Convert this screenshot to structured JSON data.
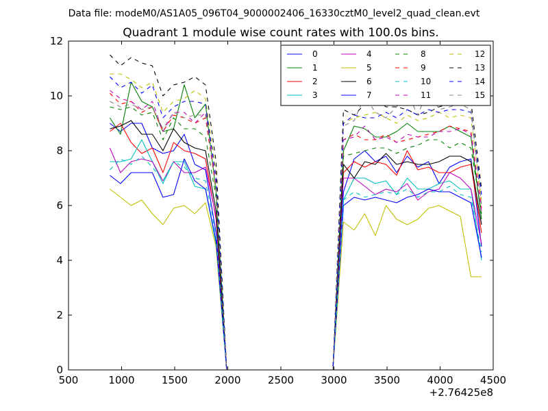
{
  "suptitle": "Data file: modeM0/AS1A05_096T04_9000002406_16330cztM0_level2_quad_clean.evt",
  "chart_data": {
    "type": "line",
    "title": "Quadrant 1 module wise count rates with 100.0s bins.",
    "xlabel": "",
    "ylabel": "",
    "x_offset_label": "+2.76425e8",
    "xlim": [
      500,
      4500
    ],
    "ylim": [
      0,
      12
    ],
    "xticks": [
      500,
      1000,
      1500,
      2000,
      2500,
      3000,
      3500,
      4000,
      4500
    ],
    "yticks": [
      0,
      2,
      4,
      6,
      8,
      10,
      12
    ],
    "grid": false,
    "legend_position": "top-right",
    "legend_columns": 4,
    "x": [
      890,
      990,
      1090,
      1190,
      1290,
      1390,
      1490,
      1590,
      1690,
      1790,
      1890,
      1990,
      2090,
      2190,
      2290,
      2390,
      2490,
      2590,
      2690,
      2790,
      2890,
      2990,
      3090,
      3190,
      3290,
      3390,
      3490,
      3590,
      3690,
      3790,
      3890,
      3990,
      4090,
      4190,
      4290,
      4390
    ],
    "series": [
      {
        "name": "0",
        "color": "#0000ff",
        "dash": false,
        "values": [
          9.0,
          8.7,
          9.0,
          9.0,
          8.1,
          7.9,
          8.0,
          8.6,
          7.5,
          7.3,
          5.0,
          0,
          0,
          0,
          0,
          0,
          0,
          0,
          0,
          0,
          0,
          0,
          6.5,
          7.7,
          8.0,
          7.6,
          7.8,
          7.2,
          7.8,
          7.4,
          7.6,
          6.8,
          7.4,
          7.6,
          7.7,
          4.5
        ]
      },
      {
        "name": "1",
        "color": "#008000",
        "dash": false,
        "values": [
          9.2,
          8.6,
          10.5,
          9.8,
          9.6,
          8.7,
          8.8,
          10.4,
          9.2,
          9.7,
          6.5,
          0,
          0,
          0,
          0,
          0,
          0,
          0,
          0,
          0,
          0,
          0,
          8.0,
          8.9,
          8.8,
          8.5,
          8.5,
          8.7,
          9.0,
          8.7,
          8.7,
          8.7,
          8.9,
          8.7,
          8.5,
          5.5
        ]
      },
      {
        "name": "2",
        "color": "#ff0000",
        "dash": false,
        "values": [
          8.7,
          9.0,
          8.3,
          7.9,
          8.1,
          7.2,
          8.3,
          8.0,
          7.9,
          7.7,
          5.5,
          0,
          0,
          0,
          0,
          0,
          0,
          0,
          0,
          0,
          0,
          0,
          7.2,
          7.6,
          7.4,
          7.6,
          7.5,
          7.1,
          8.0,
          7.3,
          7.4,
          7.2,
          7.2,
          7.4,
          7.5,
          5.0
        ]
      },
      {
        "name": "3",
        "color": "#00bfbf",
        "dash": false,
        "values": [
          7.6,
          7.6,
          7.7,
          8.4,
          7.6,
          6.8,
          7.6,
          7.6,
          6.7,
          6.6,
          4.6,
          0,
          0,
          0,
          0,
          0,
          0,
          0,
          0,
          0,
          0,
          0,
          6.2,
          7.0,
          7.0,
          6.8,
          6.9,
          6.4,
          7.0,
          6.6,
          6.6,
          6.8,
          6.9,
          6.6,
          6.6,
          4.0
        ]
      },
      {
        "name": "4",
        "color": "#bf00bf",
        "dash": false,
        "values": [
          8.1,
          7.2,
          7.6,
          7.7,
          7.6,
          6.9,
          7.6,
          7.2,
          7.2,
          7.4,
          5.6,
          0,
          0,
          0,
          0,
          0,
          0,
          0,
          0,
          0,
          0,
          0,
          7.0,
          7.0,
          6.7,
          6.4,
          6.6,
          6.5,
          6.8,
          6.2,
          6.5,
          6.6,
          7.2,
          7.0,
          6.6,
          4.6
        ]
      },
      {
        "name": "5",
        "color": "#bfbf00",
        "dash": false,
        "values": [
          6.6,
          6.3,
          6.0,
          6.2,
          5.7,
          5.3,
          5.9,
          6.0,
          5.7,
          6.1,
          4.5,
          0,
          0,
          0,
          0,
          0,
          0,
          0,
          0,
          0,
          0,
          0,
          5.4,
          5.1,
          5.7,
          4.9,
          6.0,
          5.5,
          5.3,
          5.5,
          5.9,
          6.0,
          5.8,
          5.6,
          3.4,
          3.4
        ]
      },
      {
        "name": "6",
        "color": "#000000",
        "dash": false,
        "values": [
          8.8,
          8.9,
          9.1,
          8.6,
          8.6,
          8.0,
          8.8,
          8.3,
          8.1,
          8.0,
          5.8,
          0,
          0,
          0,
          0,
          0,
          0,
          0,
          0,
          0,
          0,
          0,
          7.5,
          7.0,
          7.6,
          7.5,
          7.9,
          7.5,
          7.6,
          7.5,
          7.5,
          7.6,
          7.8,
          7.8,
          7.6,
          5.3
        ]
      },
      {
        "name": "7",
        "color": "#0000ff",
        "dash": false,
        "values": [
          7.1,
          6.8,
          7.2,
          7.2,
          7.2,
          6.3,
          6.4,
          7.7,
          6.9,
          6.6,
          4.7,
          0,
          0,
          0,
          0,
          0,
          0,
          0,
          0,
          0,
          0,
          0,
          6.0,
          6.3,
          6.2,
          6.3,
          6.2,
          6.1,
          6.3,
          6.4,
          6.6,
          6.5,
          6.5,
          6.3,
          6.1,
          4.1
        ]
      },
      {
        "name": "8",
        "color": "#008000",
        "dash": true,
        "values": [
          9.6,
          9.5,
          9.6,
          9.3,
          9.4,
          8.4,
          9.2,
          8.8,
          8.8,
          8.5,
          6.3,
          0,
          0,
          0,
          0,
          0,
          0,
          0,
          0,
          0,
          0,
          0,
          7.8,
          7.9,
          8.0,
          8.1,
          8.1,
          7.9,
          8.1,
          8.2,
          8.4,
          8.4,
          8.1,
          8.3,
          8.1,
          5.7
        ]
      },
      {
        "name": "9",
        "color": "#ff0000",
        "dash": true,
        "values": [
          10.1,
          9.7,
          9.8,
          9.4,
          9.6,
          8.7,
          9.3,
          9.2,
          9.0,
          9.2,
          6.6,
          0,
          0,
          0,
          0,
          0,
          0,
          0,
          0,
          0,
          0,
          0,
          8.4,
          8.6,
          8.4,
          8.4,
          8.6,
          8.3,
          8.4,
          8.5,
          8.6,
          8.7,
          8.9,
          8.8,
          8.7,
          5.9
        ]
      },
      {
        "name": "10",
        "color": "#00bfbf",
        "dash": true,
        "values": [
          7.3,
          7.7,
          7.5,
          7.8,
          7.4,
          6.9,
          7.6,
          7.4,
          7.0,
          6.9,
          4.9,
          0,
          0,
          0,
          0,
          0,
          0,
          0,
          0,
          0,
          0,
          0,
          6.2,
          6.5,
          6.3,
          6.4,
          6.5,
          6.4,
          6.6,
          6.3,
          6.5,
          6.5,
          6.7,
          6.4,
          6.3,
          4.3
        ]
      },
      {
        "name": "11",
        "color": "#bf00bf",
        "dash": true,
        "values": [
          10.2,
          9.9,
          9.8,
          9.5,
          9.8,
          8.7,
          9.4,
          9.4,
          9.0,
          9.4,
          6.8,
          0,
          0,
          0,
          0,
          0,
          0,
          0,
          0,
          0,
          0,
          0,
          8.4,
          8.5,
          8.9,
          8.4,
          8.5,
          8.3,
          8.6,
          8.5,
          8.5,
          8.7,
          8.7,
          8.8,
          8.6,
          5.8
        ]
      },
      {
        "name": "12",
        "color": "#bfbf00",
        "dash": true,
        "values": [
          10.8,
          10.8,
          10.6,
          10.3,
          10.5,
          9.4,
          9.8,
          9.9,
          10.2,
          9.9,
          7.2,
          0,
          0,
          0,
          0,
          0,
          0,
          0,
          0,
          0,
          0,
          0,
          9.0,
          9.2,
          9.3,
          9.4,
          9.2,
          9.0,
          9.3,
          9.1,
          9.2,
          9.4,
          9.2,
          9.3,
          9.2,
          6.2
        ]
      },
      {
        "name": "13",
        "color": "#000000",
        "dash": true,
        "values": [
          11.5,
          11.1,
          11.4,
          11.2,
          11.1,
          10.0,
          10.4,
          10.5,
          10.7,
          10.4,
          7.6,
          0,
          0,
          0,
          0,
          0,
          0,
          0,
          0,
          0,
          0,
          0,
          9.5,
          9.3,
          9.7,
          9.9,
          9.6,
          9.6,
          9.5,
          9.3,
          9.4,
          9.6,
          9.7,
          9.7,
          9.8,
          6.6
        ]
      },
      {
        "name": "14",
        "color": "#0000ff",
        "dash": true,
        "values": [
          10.7,
          10.3,
          10.5,
          10.1,
          10.4,
          9.2,
          9.6,
          9.8,
          9.8,
          9.7,
          7.0,
          0,
          0,
          0,
          0,
          0,
          0,
          0,
          0,
          0,
          0,
          0,
          9.0,
          9.3,
          9.2,
          9.2,
          9.4,
          9.2,
          9.5,
          9.3,
          9.5,
          9.4,
          9.5,
          9.5,
          9.4,
          6.4
        ]
      },
      {
        "name": "15",
        "color": "#808080",
        "dash": true,
        "values": [
          9.8,
          9.6,
          9.7,
          9.5,
          9.6,
          8.8,
          9.4,
          9.2,
          9.3,
          9.3,
          6.7,
          0,
          0,
          0,
          0,
          0,
          0,
          0,
          0,
          0,
          0,
          0,
          8.9,
          9.1,
          10.0,
          9.4,
          9.2,
          9.6,
          10.1,
          9.3,
          10.3,
          9.5,
          9.6,
          9.7,
          9.5,
          6.0
        ]
      }
    ]
  }
}
